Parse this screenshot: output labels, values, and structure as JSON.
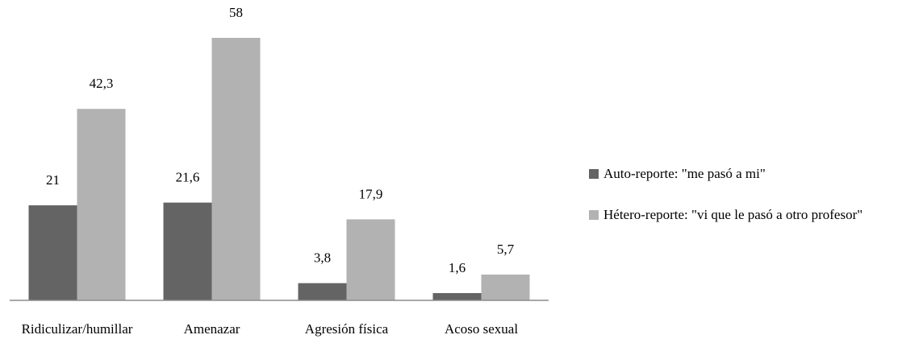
{
  "chart_data": {
    "type": "bar",
    "categories": [
      "Ridiculizar/humillar",
      "Amenazar",
      "Agresión física",
      "Acoso sexual"
    ],
    "series": [
      {
        "name": "Auto-reporte: \"me pasó a mi\"",
        "values": [
          21,
          21.6,
          3.8,
          1.6
        ],
        "labels": [
          "21",
          "21,6",
          "3,8",
          "1,6"
        ],
        "color": "#646464"
      },
      {
        "name": "Hétero-reporte: \"vi que le pasó a otro profesor\"",
        "values": [
          42.3,
          58,
          17.9,
          5.7
        ],
        "labels": [
          "42,3",
          "58",
          "17,9",
          "5,7"
        ],
        "color": "#b2b2b2"
      }
    ],
    "ylim": [
      0,
      58
    ],
    "grid": false,
    "legend_position": "right",
    "axis_color": "#8c8c8c"
  }
}
